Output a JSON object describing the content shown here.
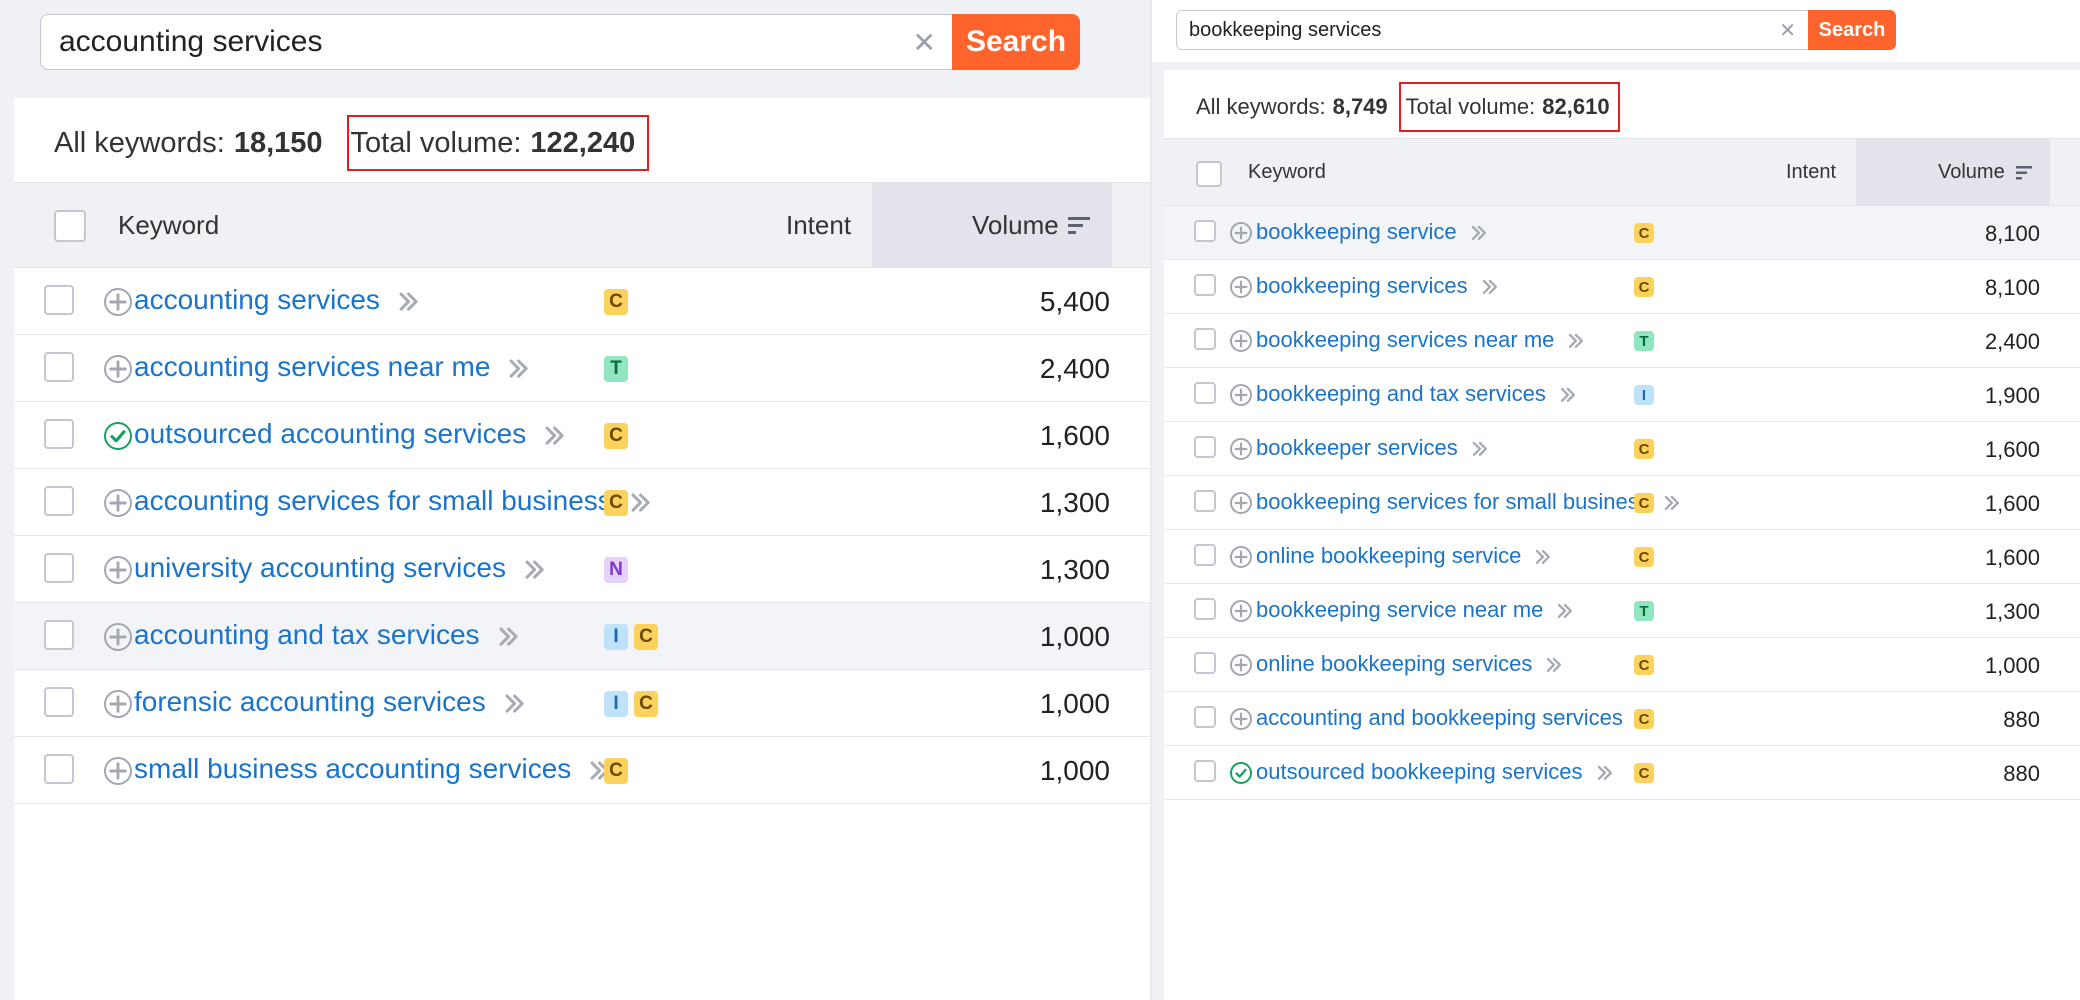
{
  "left": {
    "search": {
      "value": "accounting services",
      "button": "Search",
      "clear": "✕"
    },
    "summary": {
      "all_label": "All keywords:",
      "all_value": "18,150",
      "total_label": "Total volume:",
      "total_value": "122,240"
    },
    "headers": {
      "keyword": "Keyword",
      "intent": "Intent",
      "volume": "Volume"
    },
    "rows": [
      {
        "keyword": "accounting services",
        "icon": "plus",
        "intents": [
          "C"
        ],
        "volume": "5,400",
        "hl": false
      },
      {
        "keyword": "accounting services near me",
        "icon": "plus",
        "intents": [
          "T"
        ],
        "volume": "2,400",
        "hl": false
      },
      {
        "keyword": "outsourced accounting services",
        "icon": "check",
        "intents": [
          "C"
        ],
        "volume": "1,600",
        "hl": false
      },
      {
        "keyword": "accounting services for small business",
        "icon": "plus",
        "intents": [
          "C"
        ],
        "volume": "1,300",
        "hl": false
      },
      {
        "keyword": "university accounting services",
        "icon": "plus",
        "intents": [
          "N"
        ],
        "volume": "1,300",
        "hl": false
      },
      {
        "keyword": "accounting and tax services",
        "icon": "plus",
        "intents": [
          "I",
          "C"
        ],
        "volume": "1,000",
        "hl": true
      },
      {
        "keyword": "forensic accounting services",
        "icon": "plus",
        "intents": [
          "I",
          "C"
        ],
        "volume": "1,000",
        "hl": false
      },
      {
        "keyword": "small business accounting services",
        "icon": "plus",
        "intents": [
          "C"
        ],
        "volume": "1,000",
        "hl": false
      }
    ]
  },
  "right": {
    "search": {
      "value": "bookkeeping services",
      "button": "Search",
      "clear": "✕"
    },
    "summary": {
      "all_label": "All keywords:",
      "all_value": "8,749",
      "total_label": "Total volume:",
      "total_value": "82,610"
    },
    "headers": {
      "keyword": "Keyword",
      "intent": "Intent",
      "volume": "Volume"
    },
    "rows": [
      {
        "keyword": "bookkeeping service",
        "icon": "plus",
        "intents": [
          "C"
        ],
        "volume": "8,100",
        "hl": true
      },
      {
        "keyword": "bookkeeping services",
        "icon": "plus",
        "intents": [
          "C"
        ],
        "volume": "8,100",
        "hl": false
      },
      {
        "keyword": "bookkeeping services near me",
        "icon": "plus",
        "intents": [
          "T"
        ],
        "volume": "2,400",
        "hl": false
      },
      {
        "keyword": "bookkeeping and tax services",
        "icon": "plus",
        "intents": [
          "I"
        ],
        "volume": "1,900",
        "hl": false
      },
      {
        "keyword": "bookkeeper services",
        "icon": "plus",
        "intents": [
          "C"
        ],
        "volume": "1,600",
        "hl": false
      },
      {
        "keyword": "bookkeeping services for small business",
        "icon": "plus",
        "intents": [
          "C"
        ],
        "volume": "1,600",
        "hl": false
      },
      {
        "keyword": "online bookkeeping service",
        "icon": "plus",
        "intents": [
          "C"
        ],
        "volume": "1,600",
        "hl": false
      },
      {
        "keyword": "bookkeeping service near me",
        "icon": "plus",
        "intents": [
          "T"
        ],
        "volume": "1,300",
        "hl": false
      },
      {
        "keyword": "online bookkeeping services",
        "icon": "plus",
        "intents": [
          "C"
        ],
        "volume": "1,000",
        "hl": false
      },
      {
        "keyword": "accounting and bookkeeping services",
        "icon": "plus",
        "intents": [
          "C"
        ],
        "volume": "880",
        "hl": false
      },
      {
        "keyword": "outsourced bookkeeping services",
        "icon": "check",
        "intents": [
          "C"
        ],
        "volume": "880",
        "hl": false
      }
    ]
  },
  "colors": {
    "accent": "#ff642d",
    "link": "#1a74c9",
    "highlight_box": "#e02020"
  }
}
